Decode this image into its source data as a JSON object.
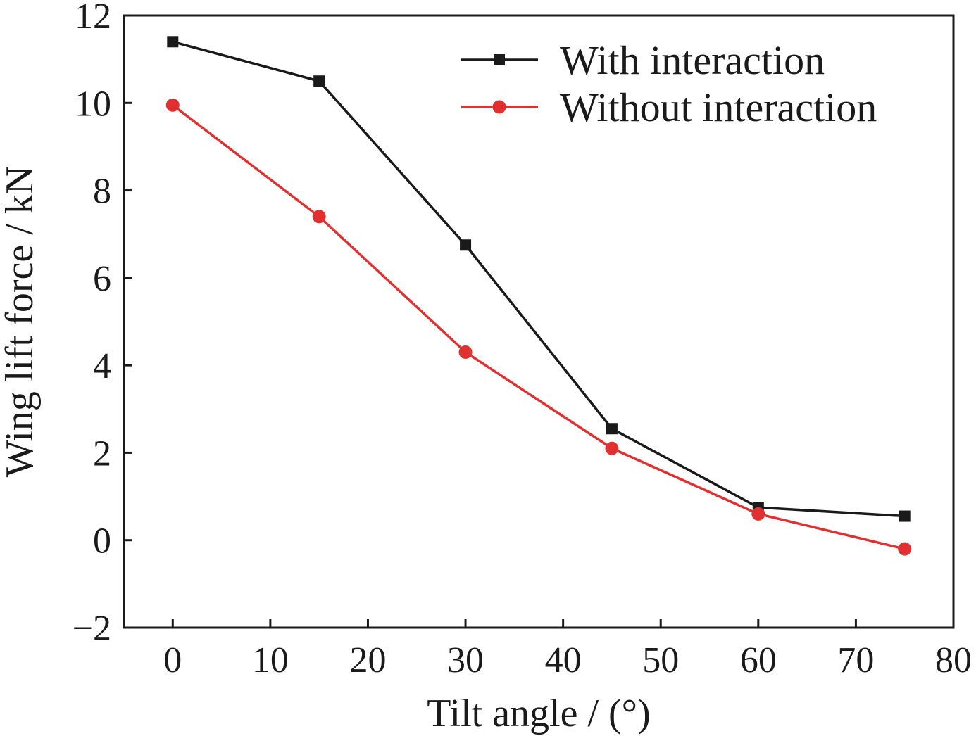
{
  "chart_data": {
    "type": "line",
    "xlabel": "Tilt angle / (°)",
    "ylabel": "Wing lift force / kN",
    "xlim": [
      -5,
      80
    ],
    "ylim": [
      -2,
      12
    ],
    "xticks": [
      0,
      10,
      20,
      30,
      40,
      50,
      60,
      70,
      80
    ],
    "yticks": [
      -2,
      0,
      2,
      4,
      6,
      8,
      10,
      12
    ],
    "xtick_labels": [
      "0",
      "10",
      "20",
      "30",
      "40",
      "50",
      "60",
      "70",
      "80"
    ],
    "ytick_labels": [
      "−2",
      "0",
      "2",
      "4",
      "6",
      "8",
      "10",
      "12"
    ],
    "legend_position": "top-right",
    "grid": false,
    "series": [
      {
        "name": "With interaction",
        "color": "#1a1a1a",
        "marker": "square",
        "x": [
          0,
          15,
          30,
          45,
          60,
          75
        ],
        "y": [
          11.4,
          10.5,
          6.75,
          2.55,
          0.75,
          0.55
        ]
      },
      {
        "name": "Without interaction",
        "color": "#e03030",
        "marker": "circle",
        "x": [
          0,
          15,
          30,
          45,
          60,
          75
        ],
        "y": [
          9.95,
          7.4,
          4.3,
          2.1,
          0.6,
          -0.2
        ]
      }
    ]
  }
}
